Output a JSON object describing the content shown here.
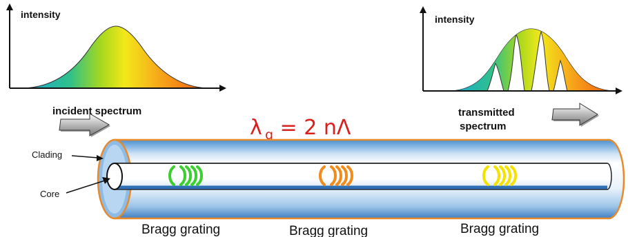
{
  "colors": {
    "equation": "#d9201c",
    "cladding_edge": "#e88a2a",
    "fiber_blue": "#3f86cc",
    "grating_1": "#3ccf2f",
    "grating_2": "#f08c1c",
    "grating_3": "#f2e300"
  },
  "incident": {
    "axis_label": "intensity",
    "caption": "incident spectrum"
  },
  "transmitted": {
    "axis_label": "intensity",
    "caption_line1": "transmitted",
    "caption_line2": "spectrum"
  },
  "equation": {
    "lambda": "λ",
    "subscript": "g",
    "rest": " = 2 nΛ"
  },
  "fiber": {
    "cladding_label": "Clading",
    "core_label": "Core"
  },
  "gratings": [
    {
      "label": "Bragg grating",
      "color": "#3ccf2f"
    },
    {
      "label": "Bragg grating",
      "color": "#f08c1c"
    },
    {
      "label": "Bragg grating",
      "color": "#f2e300"
    }
  ],
  "icons": [
    "right-arrow-icon",
    "right-arrow-icon"
  ]
}
